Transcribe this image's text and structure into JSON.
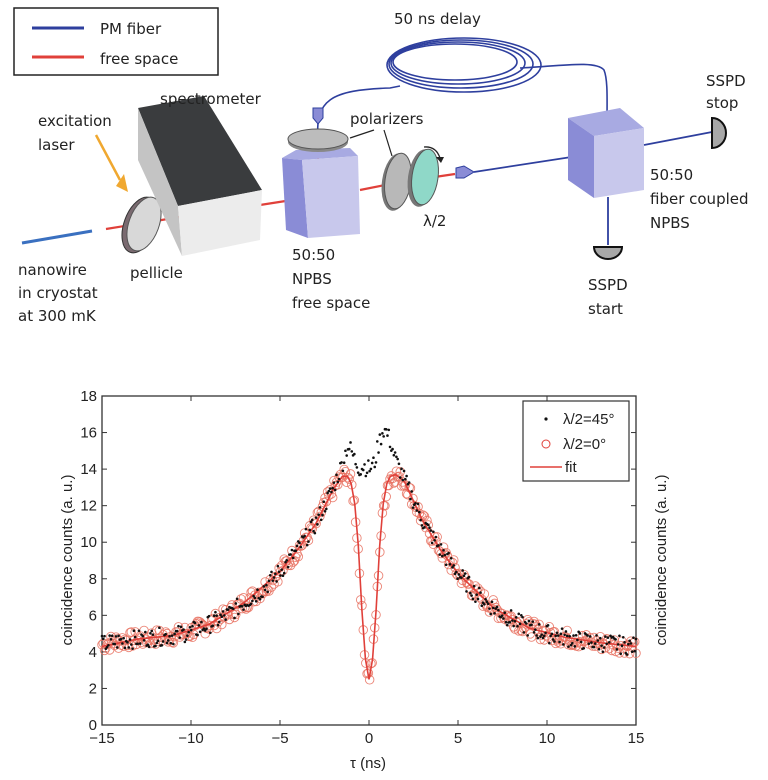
{
  "diagram": {
    "legend": {
      "items": [
        {
          "label": "PM  fiber",
          "color": "#2e3f9e"
        },
        {
          "label": "free space",
          "color": "#e0403a"
        }
      ]
    },
    "labels": {
      "delay": "50 ns delay",
      "spectrometer": "spectrometer",
      "polarizers": "polarizers",
      "excitation_1": "excitation",
      "excitation_2": "laser",
      "halfwave": "λ/2",
      "pellicle": "pellicle",
      "nanowire_1": "nanowire",
      "nanowire_2": "in cryostat",
      "nanowire_3": "at 300 mK",
      "npbs_free_1": "50:50",
      "npbs_free_2": "NPBS",
      "npbs_free_3": "free space",
      "sspd_stop_1": "SSPD",
      "sspd_stop_2": "stop",
      "npbs_fiber_1": "50:50",
      "npbs_fiber_2": "fiber coupled",
      "npbs_fiber_3": "NPBS",
      "sspd_start_1": "SSPD",
      "sspd_start_2": "start"
    },
    "colors": {
      "fiber": "#2e3f9e",
      "free_space": "#e0403a",
      "laser": "#f0a830",
      "cube_front": "#c8c8ec",
      "cube_side": "#8a8cd6",
      "cube_top": "#a8aae2",
      "waveplate": "#8fd8c8"
    }
  },
  "chart_data": {
    "type": "scatter",
    "title": "",
    "xlabel": "τ (ns)",
    "ylabel": "coincidence counts (a. u.)",
    "ylabel_right": "coincidence counts (a. u.)",
    "xlim": [
      -15,
      15
    ],
    "ylim": [
      0,
      18
    ],
    "xticks": [
      "−15",
      "−10",
      "−5",
      "0",
      "5",
      "10",
      "15"
    ],
    "yticks": [
      "0",
      "2",
      "4",
      "6",
      "8",
      "10",
      "12",
      "14",
      "16",
      "18"
    ],
    "grid": false,
    "legend_position": "upper right",
    "legend": [
      "λ/2=45°",
      "λ/2=0°",
      "fit"
    ],
    "series": [
      {
        "name": "λ/2=45°",
        "marker": "dot",
        "color": "#111111",
        "x": [
          -15,
          -14,
          -13,
          -12,
          -11,
          -10,
          -9,
          -8,
          -7,
          -6,
          -5,
          -4,
          -3,
          -2.5,
          -2,
          -1.5,
          -1.2,
          -1.0,
          -0.8,
          -0.5,
          -0.3,
          0,
          0.3,
          0.5,
          0.8,
          1.0,
          1.2,
          1.5,
          2,
          2.5,
          3,
          4,
          5,
          6,
          7,
          8,
          9,
          10,
          11,
          12,
          13,
          14,
          15
        ],
        "y": [
          4.4,
          4.6,
          4.7,
          4.8,
          4.9,
          5.1,
          5.5,
          6.0,
          6.7,
          7.4,
          8.4,
          9.6,
          11.0,
          12.0,
          13.0,
          14.3,
          15.3,
          15.0,
          14.5,
          14.0,
          14.2,
          14.0,
          14.3,
          15.2,
          16.2,
          16.0,
          15.5,
          14.5,
          13.4,
          12.3,
          11.2,
          9.6,
          8.3,
          7.2,
          6.4,
          5.8,
          5.3,
          5.0,
          4.8,
          4.6,
          4.5,
          4.4,
          4.3
        ]
      },
      {
        "name": "λ/2=0°",
        "marker": "open-circle",
        "color": "#e0403a",
        "x": [
          -15,
          -14,
          -13,
          -12,
          -11,
          -10,
          -9,
          -8,
          -7,
          -6,
          -5,
          -4,
          -3,
          -2.5,
          -2,
          -1.5,
          -1.2,
          -1.0,
          -0.8,
          -0.6,
          -0.4,
          -0.2,
          0,
          0.2,
          0.4,
          0.6,
          0.8,
          1.0,
          1.2,
          1.5,
          2,
          2.5,
          3,
          4,
          5,
          6,
          7,
          8,
          9,
          10,
          11,
          12,
          13,
          14,
          15
        ],
        "y": [
          4.4,
          4.6,
          4.7,
          4.8,
          4.9,
          5.1,
          5.5,
          6.0,
          6.7,
          7.4,
          8.4,
          9.6,
          11.0,
          12.0,
          12.9,
          13.6,
          13.7,
          13.2,
          12.0,
          9.5,
          6.2,
          3.6,
          2.5,
          3.7,
          6.2,
          9.5,
          11.8,
          13.0,
          13.6,
          13.7,
          13.3,
          12.3,
          11.2,
          9.6,
          8.3,
          7.2,
          6.4,
          5.8,
          5.3,
          5.0,
          4.8,
          4.6,
          4.5,
          4.4,
          4.3
        ]
      },
      {
        "name": "fit",
        "marker": "line",
        "color": "#e0403a",
        "x": [
          -15,
          -13,
          -11,
          -9,
          -7,
          -5,
          -4,
          -3,
          -2,
          -1.5,
          -1.2,
          -1.0,
          -0.8,
          -0.6,
          -0.4,
          -0.2,
          0,
          0.2,
          0.4,
          0.6,
          0.8,
          1.0,
          1.2,
          1.5,
          2,
          3,
          4,
          5,
          7,
          9,
          11,
          13,
          15
        ],
        "y": [
          4.3,
          4.7,
          4.9,
          5.5,
          6.7,
          8.4,
          9.6,
          11.0,
          12.9,
          13.6,
          13.6,
          13.2,
          12.1,
          9.8,
          6.3,
          3.6,
          2.5,
          3.6,
          6.3,
          9.8,
          12.1,
          13.2,
          13.6,
          13.7,
          13.3,
          11.2,
          9.6,
          8.3,
          6.4,
          5.3,
          4.8,
          4.5,
          4.3
        ]
      }
    ]
  }
}
